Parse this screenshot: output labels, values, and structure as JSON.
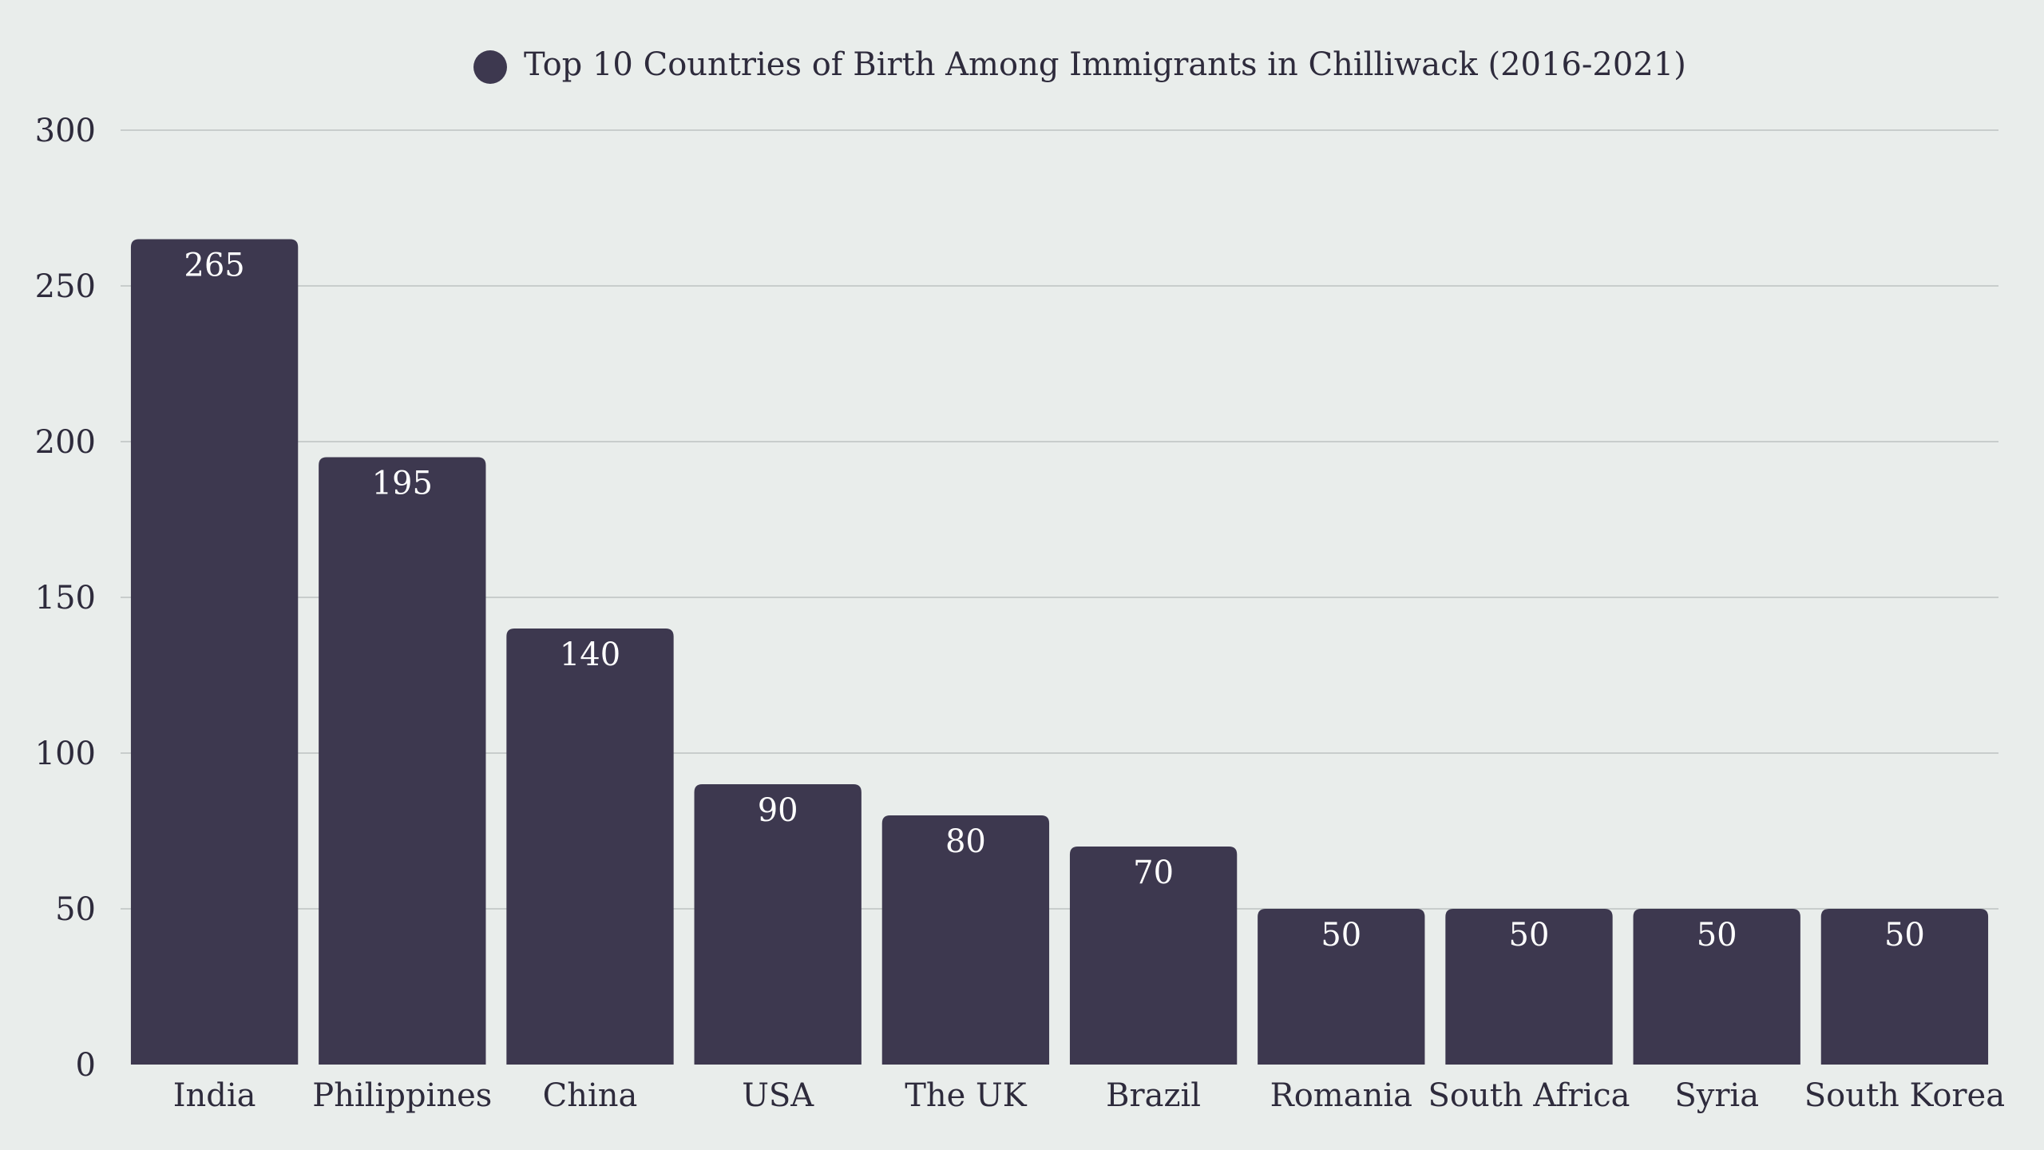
{
  "chart_data": {
    "type": "bar",
    "title": "",
    "xlabel": "",
    "ylabel": "",
    "series": [
      {
        "name": "Top 10 Countries of Birth Among Immigrants in Chilliwack (2016-2021)",
        "values": [
          265,
          195,
          140,
          90,
          80,
          70,
          50,
          50,
          50,
          50
        ]
      }
    ],
    "categories": [
      "India",
      "Philippines",
      "China",
      "USA",
      "The UK",
      "Brazil",
      "Romania",
      "South Africa",
      "Syria",
      "South Korea"
    ],
    "ylim": [
      0,
      300
    ],
    "yticks": [
      0,
      50,
      100,
      150,
      200,
      250,
      300
    ],
    "grid": true,
    "legend_position": "top-center",
    "data_labels": true
  },
  "colors": {
    "background": "#E9EDEB",
    "bar": "#3D384F",
    "grid": "#C8CDCC",
    "text": "#2E2B3C",
    "bar_label": "#FFFFFF"
  }
}
